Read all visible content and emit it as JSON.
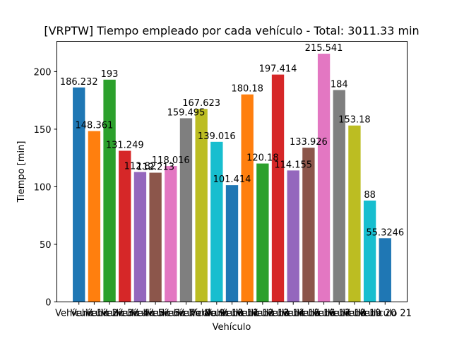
{
  "chart_data": {
    "type": "bar",
    "title": "[VRPTW] Tiempo empleado por cada vehículo - Total: 3011.33 min",
    "xlabel": "Vehículo",
    "ylabel": "Tiempo [min]",
    "ylim": [
      0,
      226.3
    ],
    "yticks": [
      0,
      50,
      100,
      150,
      200
    ],
    "grid": false,
    "categories": [
      "Vehículo 1",
      "Vehículo 2",
      "Vehículo 3",
      "Vehículo 4",
      "Vehículo 5",
      "Vehículo 6",
      "Vehículo 7",
      "Vehículo 8",
      "Vehículo 9",
      "Vehículo 10",
      "Vehículo 11",
      "Vehículo 12",
      "Vehículo 13",
      "Vehículo 14",
      "Vehículo 15",
      "Vehículo 16",
      "Vehículo 17",
      "Vehículo 18",
      "Vehículo 19",
      "Vehículo 20",
      "Vehículo 21"
    ],
    "values": [
      186.232,
      148.361,
      193,
      131.249,
      112.82,
      112.213,
      118.016,
      159.495,
      167.623,
      139.016,
      101.414,
      180.18,
      120.18,
      197.414,
      114.155,
      133.926,
      215.541,
      184,
      153.18,
      88,
      55.3246
    ],
    "value_labels": [
      "186.232",
      "148.361",
      "193",
      "131.249",
      "112.82",
      "112.213",
      "118.016",
      "159.495",
      "167.623",
      "139.016",
      "101.414",
      "180.18",
      "120.18",
      "197.414",
      "114.155",
      "133.926",
      "215.541",
      "184",
      "153.18",
      "88",
      "55.3246"
    ],
    "colors": [
      "#1f77b4",
      "#ff7f0e",
      "#2ca02c",
      "#d62728",
      "#9467bd",
      "#8c564b",
      "#e377c2",
      "#7f7f7f",
      "#bcbd22",
      "#17becf",
      "#1f77b4",
      "#ff7f0e",
      "#2ca02c",
      "#d62728",
      "#9467bd",
      "#8c564b",
      "#e377c2",
      "#7f7f7f",
      "#bcbd22",
      "#17becf",
      "#1f77b4"
    ]
  }
}
